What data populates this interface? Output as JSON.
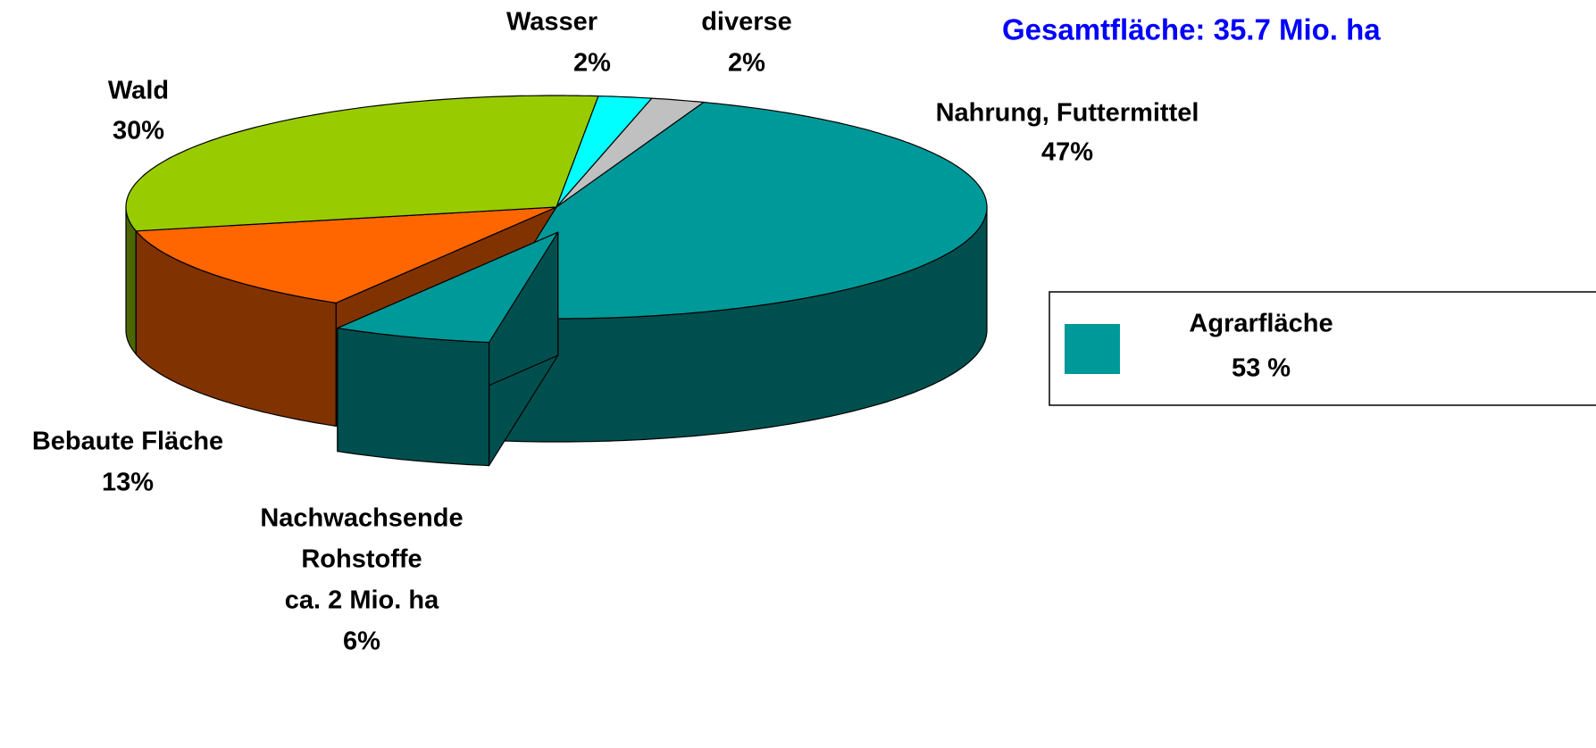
{
  "chart_data": {
    "type": "pie3d",
    "title": "Gesamtfläche: 35.7 Mio. ha",
    "categories": [
      [
        "Nahrung, Futtermittel"
      ],
      [
        "Nachwachsende",
        "Rohstoffe",
        "ca. 2 Mio. ha"
      ],
      [
        "Bebaute Fläche"
      ],
      [
        "Wald"
      ],
      [
        "Wasser"
      ],
      [
        "diverse"
      ]
    ],
    "values": [
      47,
      6,
      13,
      30,
      2,
      2
    ],
    "value_labels": [
      "47%",
      "6%",
      "13%",
      "30%",
      "2%",
      "2%"
    ],
    "colors": [
      "#009999",
      "#009999",
      "#ff6600",
      "#99cc00",
      "#00ffff",
      "#c0c0c0"
    ],
    "side_colors": [
      "#004f4f",
      "#004f4f",
      "#803300",
      "#4d6600",
      "#00a0a0",
      "#808080"
    ],
    "exploded": [
      1
    ],
    "legend": {
      "label": "Agrarfläche",
      "value": 53,
      "value_label": "53 %",
      "color": "#009999"
    }
  }
}
